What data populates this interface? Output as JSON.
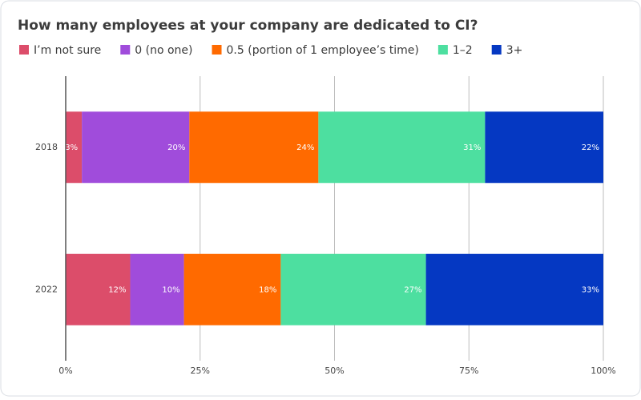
{
  "chart_data": {
    "type": "stacked_bar_horizontal",
    "title": "How many employees at your company are dedicated to CI?",
    "categories": [
      "2018",
      "2022"
    ],
    "series": [
      {
        "name": "I’m not sure",
        "color": "#dc4d6a",
        "values": [
          3,
          12
        ],
        "value_labels": [
          "3%",
          "12%"
        ]
      },
      {
        "name": "0 (no one)",
        "color": "#a04cdb",
        "values": [
          20,
          10
        ],
        "value_labels": [
          "20%",
          "10%"
        ]
      },
      {
        "name": "0.5 (portion of 1 employee’s time)",
        "color": "#ff6a00",
        "values": [
          24,
          18
        ],
        "value_labels": [
          "24%",
          "18%"
        ]
      },
      {
        "name": "1–2",
        "color": "#4ddfa0",
        "values": [
          31,
          27
        ],
        "value_labels": [
          "31%",
          "27%"
        ]
      },
      {
        "name": "3+",
        "color": "#0538c2",
        "values": [
          22,
          33
        ],
        "value_labels": [
          "22%",
          "33%"
        ]
      }
    ],
    "xlim": [
      0,
      100
    ],
    "xticks": [
      {
        "value": 0,
        "label": "0%"
      },
      {
        "value": 25,
        "label": "25%"
      },
      {
        "value": 50,
        "label": "50%"
      },
      {
        "value": 75,
        "label": "75%"
      },
      {
        "value": 100,
        "label": "100%"
      }
    ],
    "grid": true,
    "legend": "top"
  }
}
